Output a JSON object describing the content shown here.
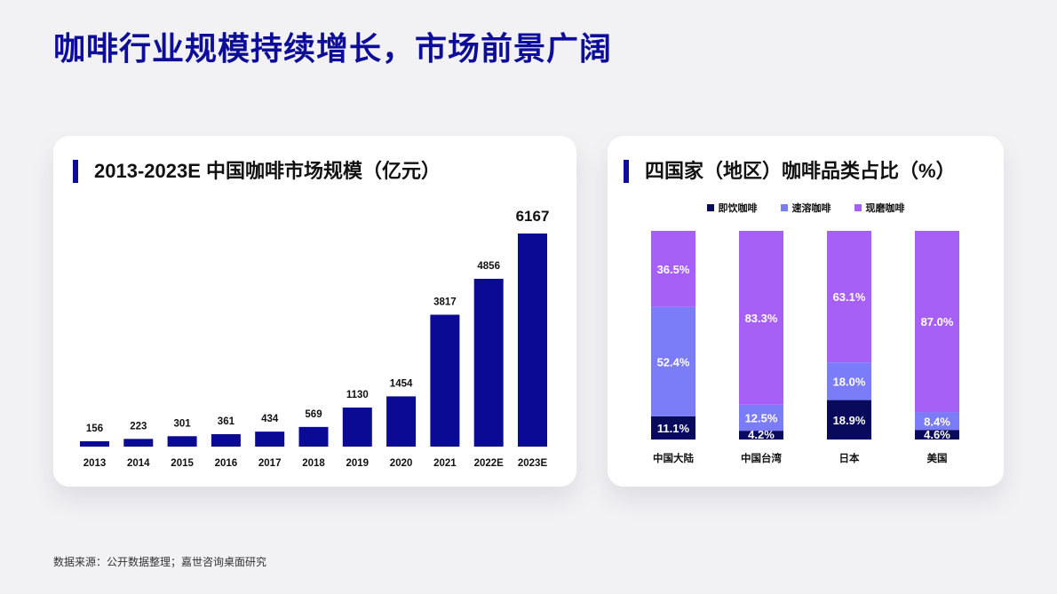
{
  "page": {
    "title": "咖啡行业规模持续增长，市场前景广阔",
    "source": "数据来源：公开数据整理；嘉世咨询桌面研究"
  },
  "colors": {
    "title": "#0d0d9a",
    "bar": "#0a0a94",
    "instant": "#0a0a5c",
    "soluble": "#7b7cf7",
    "fresh": "#a760f6"
  },
  "chart_data": [
    {
      "type": "bar",
      "title": "2013-2023E 中国咖啡市场规模（亿元）",
      "categories": [
        "2013",
        "2014",
        "2015",
        "2016",
        "2017",
        "2018",
        "2019",
        "2020",
        "2021",
        "2022E",
        "2023E"
      ],
      "values": [
        156,
        223,
        301,
        361,
        434,
        569,
        1130,
        1454,
        3817,
        4856,
        6167
      ],
      "ylim": [
        0,
        6167
      ]
    },
    {
      "type": "bar",
      "stacked": true,
      "percent": true,
      "title": "四国家（地区）咖啡品类占比（%）",
      "categories": [
        "中国大陆",
        "中国台湾",
        "日本",
        "美国"
      ],
      "legend_position": "top",
      "series": [
        {
          "name": "即饮咖啡",
          "values": [
            11.1,
            4.2,
            18.9,
            4.6
          ]
        },
        {
          "name": "速溶咖啡",
          "values": [
            52.4,
            12.5,
            18.0,
            8.4
          ]
        },
        {
          "name": "现磨咖啡",
          "values": [
            36.5,
            83.3,
            63.1,
            87.0
          ]
        }
      ]
    }
  ]
}
